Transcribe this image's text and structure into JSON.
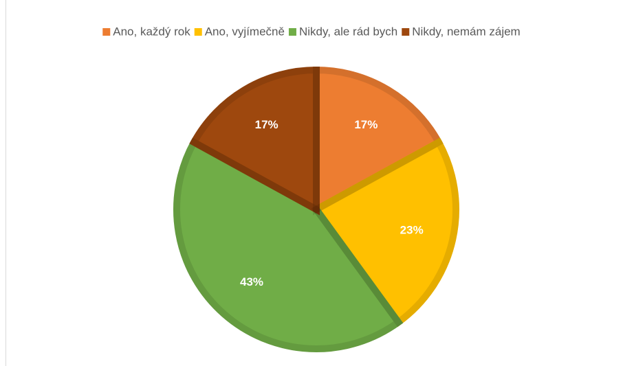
{
  "chart_data": {
    "type": "pie",
    "categories": [
      "Ano, každý rok",
      "Ano, vyjímečně",
      "Nikdy, ale rád bych",
      "Nikdy, nemám zájem"
    ],
    "values": [
      17,
      23,
      43,
      17
    ],
    "value_labels": [
      "17%",
      "23%",
      "43%",
      "17%"
    ],
    "colors": [
      "#ED7D31",
      "#FFC000",
      "#70AD47",
      "#9E480E"
    ],
    "legend": "top"
  }
}
